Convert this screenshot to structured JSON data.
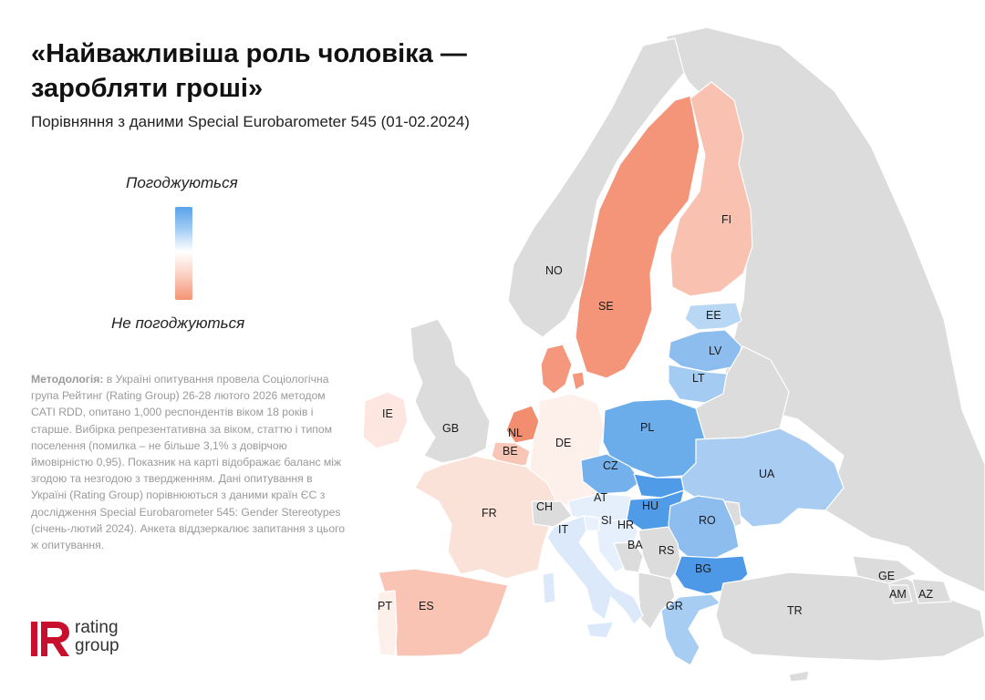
{
  "title": "«Найважливіша роль чоловіка — заробляти гроші»",
  "subtitle": "Порівняння з даними Special Eurobarometer 545 (01-02.2024)",
  "legend": {
    "top_label": "Погоджуються",
    "bottom_label": "Не погоджуються",
    "colors": {
      "agree": "#5aa3ea",
      "neutral": "#ffffff",
      "disagree": "#f49374",
      "no_data": "#dcdcdc"
    }
  },
  "methodology": {
    "label": "Методологія:",
    "text": "в Україні опитування провела Соціологічна група Рейтинг (Rating Group) 26-28 лютого 2026 методом CATI RDD, опитано 1,000 респондентів віком 18 років і старше. Вибірка репрезентативна за віком, статтю і типом поселення (помилка – не більше 3,1% з довірчою ймовірністю 0,95). Показник на карті відображає баланс між згодою та незгодою з твердженням. Дані опитування в Україні (Rating Group) порівнюються з даними країн ЄС з дослідження Special Eurobarometer 545: Gender Stereotypes (січень-лютий 2024). Анкета віддзеркалює запитання з цього ж опитування."
  },
  "logo": {
    "mark": "R",
    "line1": "rating",
    "line2": "group",
    "brand_color": "#c8102e"
  },
  "countries": [
    {
      "code": "NO",
      "name": "Norway",
      "shading": "no-data",
      "color": "#dcdcdc"
    },
    {
      "code": "SE",
      "name": "Sweden",
      "shading": "disagree-strong",
      "color": "#f4957a"
    },
    {
      "code": "FI",
      "name": "Finland",
      "shading": "disagree-light",
      "color": "#f9c2b0"
    },
    {
      "code": "EE",
      "name": "Estonia",
      "shading": "agree-light",
      "color": "#b7d7f5"
    },
    {
      "code": "LV",
      "name": "Latvia",
      "shading": "agree",
      "color": "#8dbdee"
    },
    {
      "code": "LT",
      "name": "Lithuania",
      "shading": "agree-light",
      "color": "#a4cbf2"
    },
    {
      "code": "DK",
      "name": "Denmark",
      "shading": "disagree-strong",
      "color": "#f4977c"
    },
    {
      "code": "IE",
      "name": "Ireland",
      "shading": "disagree-faint",
      "color": "#fce6df"
    },
    {
      "code": "GB",
      "name": "United Kingdom",
      "shading": "no-data",
      "color": "#dcdcdc"
    },
    {
      "code": "NL",
      "name": "Netherlands",
      "shading": "disagree-strong",
      "color": "#f28d70"
    },
    {
      "code": "BE",
      "name": "Belgium",
      "shading": "disagree-light",
      "color": "#f8c6b6"
    },
    {
      "code": "DE",
      "name": "Germany",
      "shading": "disagree-faint",
      "color": "#fdf0ea"
    },
    {
      "code": "PL",
      "name": "Poland",
      "shading": "agree-strong",
      "color": "#6badeb"
    },
    {
      "code": "CZ",
      "name": "Czechia",
      "shading": "agree-strong",
      "color": "#74b1ec"
    },
    {
      "code": "AT",
      "name": "Austria",
      "shading": "agree-faint",
      "color": "#e4effb"
    },
    {
      "code": "HU",
      "name": "Hungary",
      "shading": "agree-strongest",
      "color": "#4f9be8"
    },
    {
      "code": "FR",
      "name": "France",
      "shading": "disagree-faint",
      "color": "#fbe2d9"
    },
    {
      "code": "CH",
      "name": "Switzerland",
      "shading": "no-data",
      "color": "#dcdcdc"
    },
    {
      "code": "IT",
      "name": "Italy",
      "shading": "agree-faint",
      "color": "#dce9fa"
    },
    {
      "code": "SI",
      "name": "Slovenia",
      "shading": "agree-faint",
      "color": "#e9f2fc"
    },
    {
      "code": "HR",
      "name": "Croatia",
      "shading": "agree-faint",
      "color": "#e6f0fc"
    },
    {
      "code": "BA",
      "name": "Bosnia and Herzegovina",
      "shading": "no-data",
      "color": "#dcdcdc"
    },
    {
      "code": "RS",
      "name": "Serbia",
      "shading": "no-data",
      "color": "#dcdcdc"
    },
    {
      "code": "RO",
      "name": "Romania",
      "shading": "agree",
      "color": "#8dbdee"
    },
    {
      "code": "BG",
      "name": "Bulgaria",
      "shading": "agree-strongest",
      "color": "#4d99e7"
    },
    {
      "code": "GR",
      "name": "Greece",
      "shading": "agree-light",
      "color": "#a8cdf2"
    },
    {
      "code": "UA",
      "name": "Ukraine",
      "shading": "agree-light",
      "color": "#a9cdf2"
    },
    {
      "code": "ES",
      "name": "Spain",
      "shading": "disagree-light",
      "color": "#f9c4b3"
    },
    {
      "code": "PT",
      "name": "Portugal",
      "shading": "disagree-faint",
      "color": "#fdf0ea"
    },
    {
      "code": "TR",
      "name": "Türkiye",
      "shading": "no-data",
      "color": "#dcdcdc"
    },
    {
      "code": "GE",
      "name": "Georgia",
      "shading": "no-data",
      "color": "#dcdcdc"
    },
    {
      "code": "AM",
      "name": "Armenia",
      "shading": "no-data",
      "color": "#dcdcdc"
    },
    {
      "code": "AZ",
      "name": "Azerbaijan",
      "shading": "no-data",
      "color": "#dcdcdc"
    }
  ]
}
